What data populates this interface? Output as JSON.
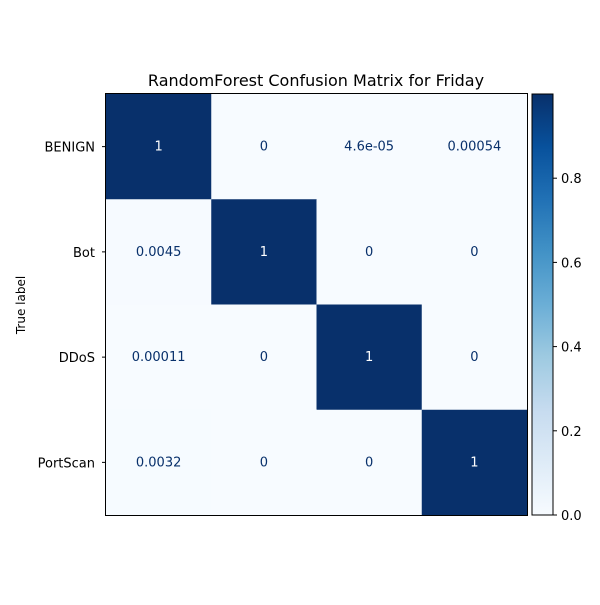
{
  "chart_data": {
    "type": "heatmap",
    "title": "RandomForest Confusion Matrix for Friday",
    "xlabel": "",
    "ylabel": "True label",
    "row_labels": [
      "BENIGN",
      "Bot",
      "DDoS",
      "PortScan"
    ],
    "col_labels": [],
    "cells": [
      [
        {
          "value": 1,
          "label": "1"
        },
        {
          "value": 0,
          "label": "0"
        },
        {
          "value": 4.6e-05,
          "label": "4.6e-05"
        },
        {
          "value": 0.00054,
          "label": "0.00054"
        }
      ],
      [
        {
          "value": 0.0045,
          "label": "0.0045"
        },
        {
          "value": 1,
          "label": "1"
        },
        {
          "value": 0,
          "label": "0"
        },
        {
          "value": 0,
          "label": "0"
        }
      ],
      [
        {
          "value": 0.00011,
          "label": "0.00011"
        },
        {
          "value": 0,
          "label": "0"
        },
        {
          "value": 1,
          "label": "1"
        },
        {
          "value": 0,
          "label": "0"
        }
      ],
      [
        {
          "value": 0.0032,
          "label": "0.0032"
        },
        {
          "value": 0,
          "label": "0"
        },
        {
          "value": 0,
          "label": "0"
        },
        {
          "value": 1,
          "label": "1"
        }
      ]
    ],
    "colormap": "Blues",
    "colormap_stops": [
      "#f7fbff",
      "#deebf7",
      "#c6dbef",
      "#9ecae1",
      "#6baed6",
      "#4292c6",
      "#2171b5",
      "#08519c",
      "#08306b"
    ],
    "text_color_dark": "#08306b",
    "text_color_light": "#ffffff",
    "colorbar": {
      "range": [
        0.0,
        1.0
      ],
      "ticks": [
        0.0,
        0.2,
        0.4,
        0.6,
        0.8
      ],
      "tick_labels": [
        "0.0",
        "0.2",
        "0.4",
        "0.6",
        "0.8"
      ]
    },
    "grid": false
  }
}
